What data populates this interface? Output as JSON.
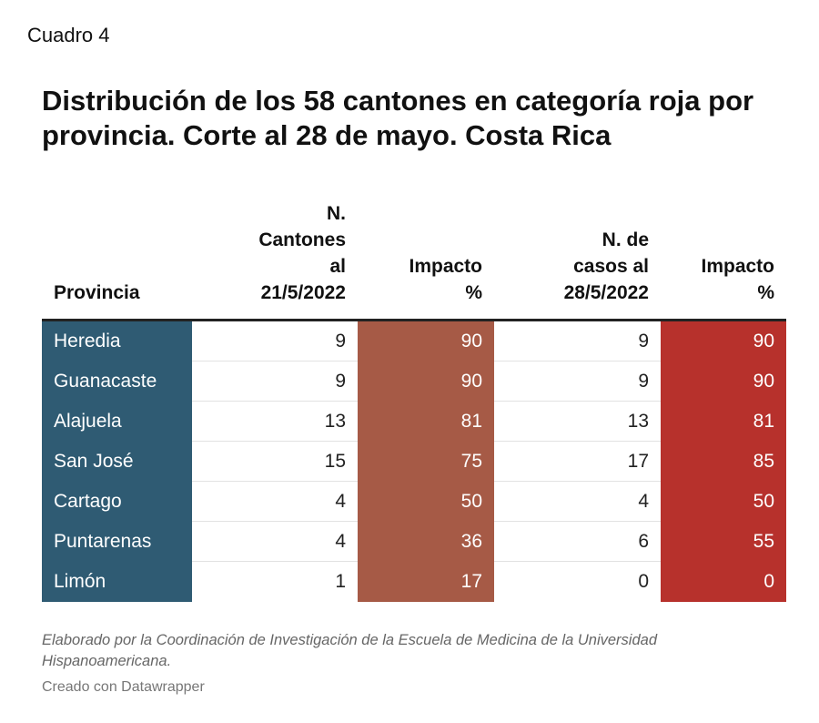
{
  "label_top": "Cuadro 4",
  "chart_data": {
    "type": "table",
    "title": "Distribución de los 58 cantones en categoría roja por provincia. Corte al 28 de mayo. Costa Rica",
    "columns": [
      "Provincia",
      "N. Cantones al 21/5/2022",
      "Impacto %",
      "N. de casos al 28/5/2022",
      "Impacto %"
    ],
    "rows": [
      [
        "Heredia",
        9,
        90,
        9,
        90
      ],
      [
        "Guanacaste",
        9,
        90,
        9,
        90
      ],
      [
        "Alajuela",
        13,
        81,
        13,
        81
      ],
      [
        "San José",
        15,
        75,
        17,
        85
      ],
      [
        "Cartago",
        4,
        50,
        4,
        50
      ],
      [
        "Puntarenas",
        4,
        36,
        6,
        55
      ],
      [
        "Limón",
        1,
        17,
        0,
        0
      ]
    ],
    "colors": {
      "provincia_column": "#2f5b73",
      "impacto_21_column": "#a65a46",
      "impacto_28_column": "#b7312c"
    }
  },
  "header_lines": [
    [
      "Provincia"
    ],
    [
      "N.",
      "Cantones",
      "al",
      "21/5/2022"
    ],
    [
      "Impacto",
      "%"
    ],
    [
      "N. de",
      "casos al",
      "28/5/2022"
    ],
    [
      "Impacto",
      "%"
    ]
  ],
  "footnote": "Elaborado por la Coordinación de Investigación de la Escuela de Medicina de la Universidad Hispanoamericana.",
  "credit": "Creado con Datawrapper"
}
